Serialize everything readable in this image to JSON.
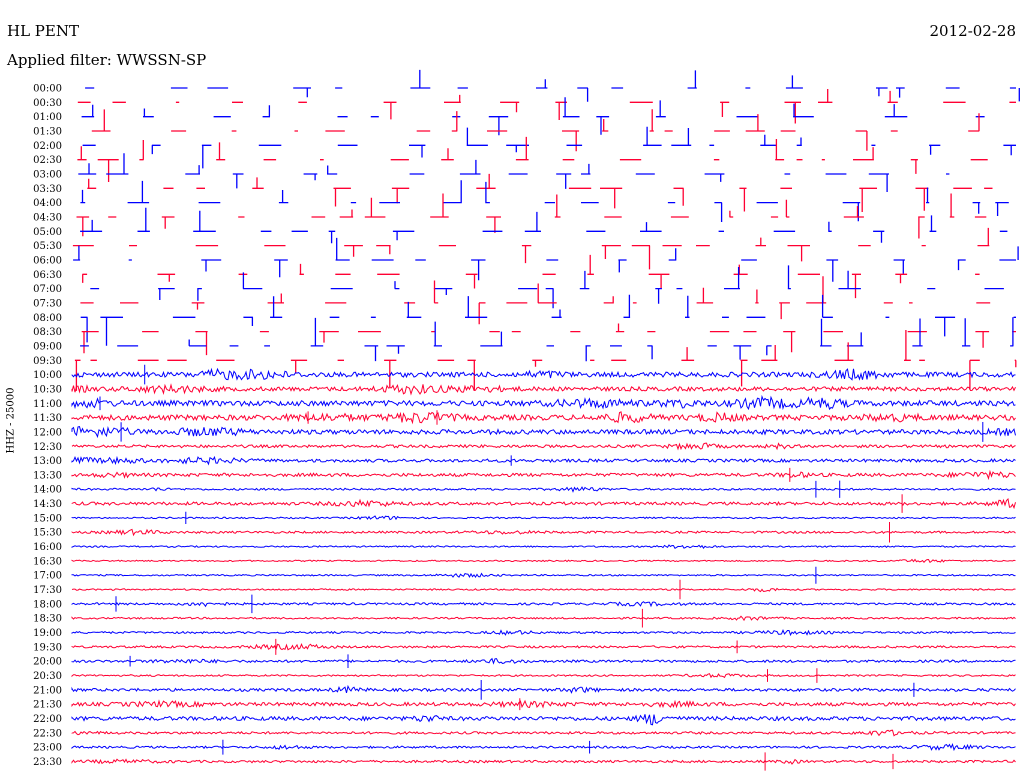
{
  "header": {
    "station": "HL PENT",
    "date": "2012-02-28",
    "filter": "Applied filter: WWSSN-SP"
  },
  "chart_data": {
    "type": "line",
    "title": "HL PENT",
    "subtitle": "Applied filter: WWSSN-SP",
    "ylabel": "HHZ - 25000",
    "colors": [
      "#0000ff",
      "#ff0033"
    ],
    "rows": [
      {
        "time": "00:00",
        "activity": 0.05,
        "clipped": true
      },
      {
        "time": "00:30",
        "activity": 0.05,
        "clipped": true
      },
      {
        "time": "01:00",
        "activity": 0.08,
        "clipped": true
      },
      {
        "time": "01:30",
        "activity": 0.08,
        "clipped": true
      },
      {
        "time": "02:00",
        "activity": 0.08,
        "clipped": true
      },
      {
        "time": "02:30",
        "activity": 0.08,
        "clipped": true
      },
      {
        "time": "03:00",
        "activity": 0.1,
        "clipped": true
      },
      {
        "time": "03:30",
        "activity": 0.1,
        "clipped": true
      },
      {
        "time": "04:00",
        "activity": 0.12,
        "clipped": true
      },
      {
        "time": "04:30",
        "activity": 0.15,
        "clipped": true
      },
      {
        "time": "05:00",
        "activity": 0.15,
        "clipped": true
      },
      {
        "time": "05:30",
        "activity": 0.12,
        "clipped": true
      },
      {
        "time": "06:00",
        "activity": 0.08,
        "clipped": true
      },
      {
        "time": "06:30",
        "activity": 0.12,
        "clipped": true
      },
      {
        "time": "07:00",
        "activity": 0.15,
        "clipped": true
      },
      {
        "time": "07:30",
        "activity": 0.2,
        "clipped": true
      },
      {
        "time": "08:00",
        "activity": 0.25,
        "clipped": true
      },
      {
        "time": "08:30",
        "activity": 0.25,
        "clipped": true
      },
      {
        "time": "09:00",
        "activity": 0.3,
        "clipped": true
      },
      {
        "time": "09:30",
        "activity": 0.35,
        "clipped": true
      },
      {
        "time": "10:00",
        "activity": 0.9,
        "clipped": false
      },
      {
        "time": "10:30",
        "activity": 0.75,
        "clipped": false
      },
      {
        "time": "11:00",
        "activity": 1.0,
        "clipped": false
      },
      {
        "time": "11:30",
        "activity": 1.0,
        "clipped": false
      },
      {
        "time": "12:00",
        "activity": 0.85,
        "clipped": false
      },
      {
        "time": "12:30",
        "activity": 0.45,
        "clipped": false
      },
      {
        "time": "13:00",
        "activity": 0.5,
        "clipped": false
      },
      {
        "time": "13:30",
        "activity": 0.55,
        "clipped": false
      },
      {
        "time": "14:00",
        "activity": 0.25,
        "clipped": false
      },
      {
        "time": "14:30",
        "activity": 0.5,
        "clipped": false
      },
      {
        "time": "15:00",
        "activity": 0.15,
        "clipped": false
      },
      {
        "time": "15:30",
        "activity": 0.3,
        "clipped": false
      },
      {
        "time": "16:00",
        "activity": 0.15,
        "clipped": false
      },
      {
        "time": "16:30",
        "activity": 0.12,
        "clipped": false
      },
      {
        "time": "17:00",
        "activity": 0.15,
        "clipped": false
      },
      {
        "time": "17:30",
        "activity": 0.15,
        "clipped": false
      },
      {
        "time": "18:00",
        "activity": 0.3,
        "clipped": false
      },
      {
        "time": "18:30",
        "activity": 0.2,
        "clipped": false
      },
      {
        "time": "19:00",
        "activity": 0.25,
        "clipped": false
      },
      {
        "time": "19:30",
        "activity": 0.3,
        "clipped": false
      },
      {
        "time": "20:00",
        "activity": 0.35,
        "clipped": false
      },
      {
        "time": "20:30",
        "activity": 0.2,
        "clipped": false
      },
      {
        "time": "21:00",
        "activity": 0.45,
        "clipped": false
      },
      {
        "time": "21:30",
        "activity": 0.6,
        "clipped": false
      },
      {
        "time": "22:00",
        "activity": 0.7,
        "clipped": false
      },
      {
        "time": "22:30",
        "activity": 0.35,
        "clipped": false
      },
      {
        "time": "23:00",
        "activity": 0.3,
        "clipped": false
      },
      {
        "time": "23:30",
        "activity": 0.35,
        "clipped": false
      }
    ]
  }
}
